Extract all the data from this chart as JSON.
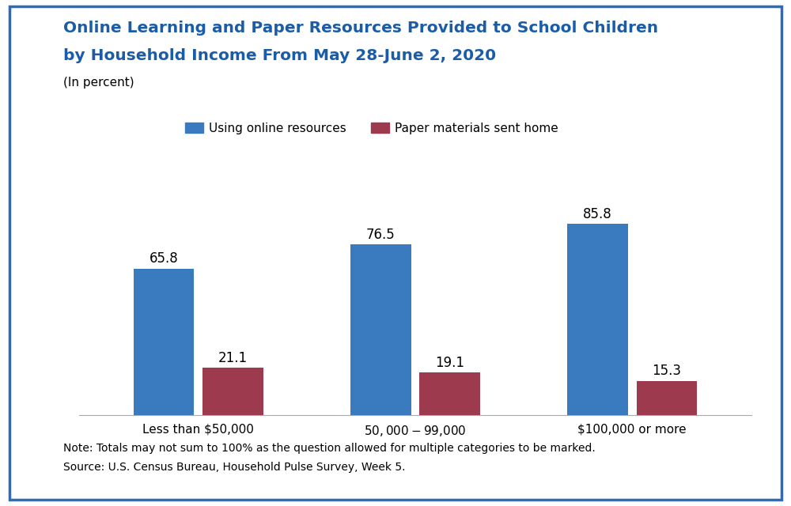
{
  "title_line1": "Online Learning and Paper Resources Provided to School Children",
  "title_line2": "by Household Income From May 28-June 2, 2020",
  "subtitle": "(In percent)",
  "categories": [
    "Less than $50,000",
    "$50,000-$99,000",
    "$100,000 or more"
  ],
  "online_values": [
    65.8,
    76.5,
    85.8
  ],
  "paper_values": [
    21.1,
    19.1,
    15.3
  ],
  "online_color": "#3a7bbf",
  "paper_color": "#9e3a4e",
  "title_color": "#1a5ca8",
  "legend_labels": [
    "Using online resources",
    "Paper materials sent home"
  ],
  "note_line1": "Note: Totals may not sum to 100% as the question allowed for multiple categories to be marked.",
  "note_line2": "Source: U.S. Census Bureau, Household Pulse Survey, Week 5.",
  "bg_color": "#ffffff",
  "border_color": "#2a6ebb",
  "ylim": [
    0,
    100
  ],
  "bar_width": 0.28,
  "title_fontsize": 14.5,
  "subtitle_fontsize": 11,
  "tick_fontsize": 11,
  "note_fontsize": 10,
  "legend_fontsize": 11,
  "value_fontsize": 12
}
